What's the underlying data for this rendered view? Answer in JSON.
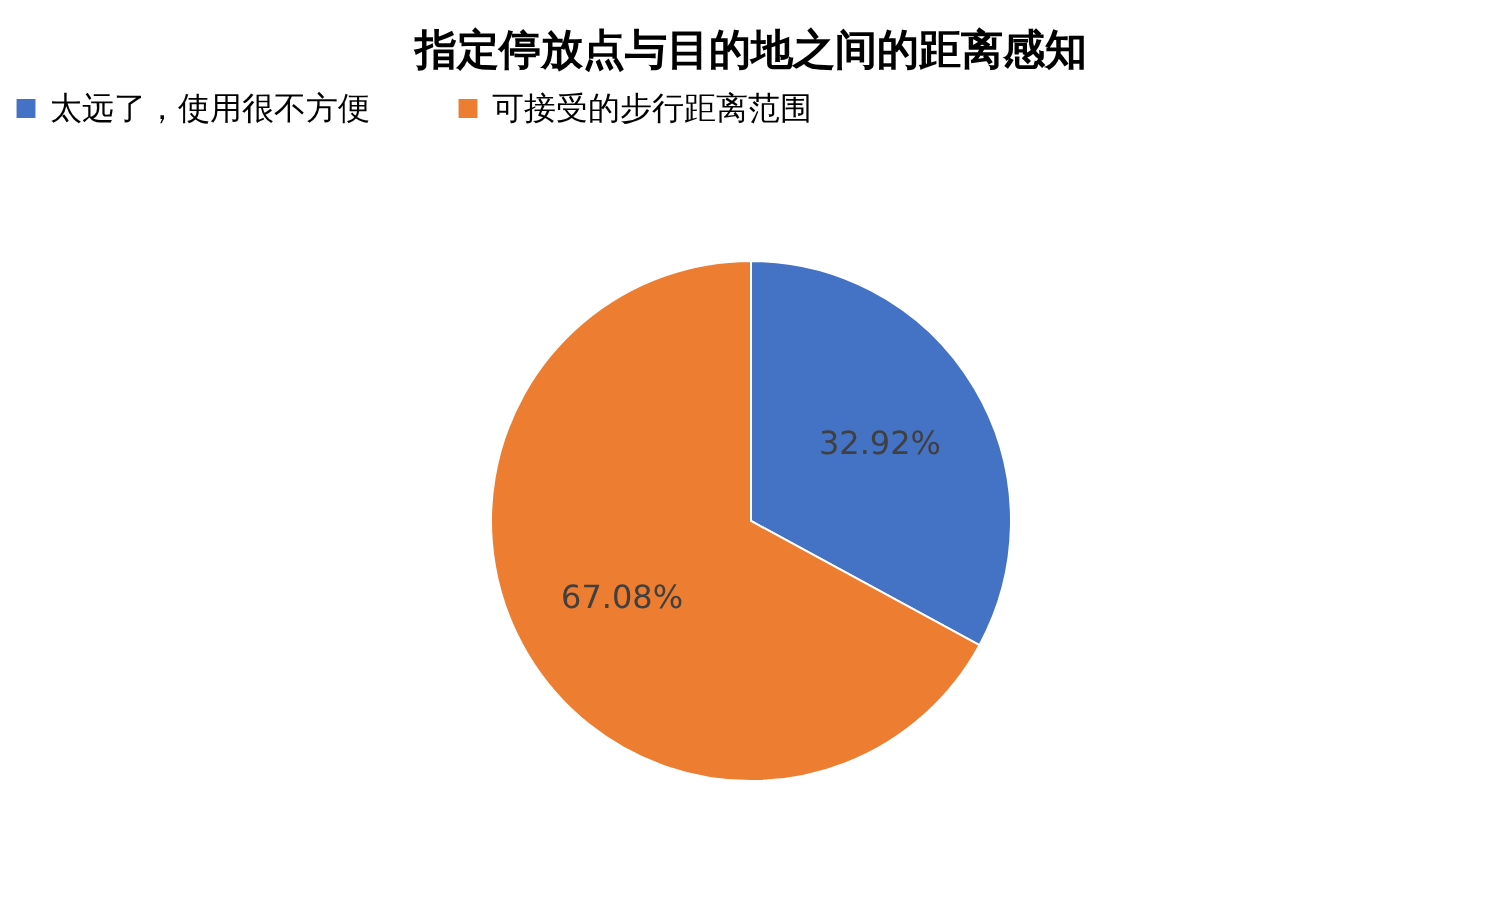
{
  "chart_data": {
    "type": "pie",
    "title": "指定停放点与目的地之间的距离感知",
    "categories": [
      "太远了，使用很不方便",
      "可接受的步行距离范围"
    ],
    "values": [
      32.92,
      67.08
    ],
    "colors": [
      "#4472c4",
      "#ed7d31"
    ],
    "value_labels": [
      "32.92%",
      "67.08%"
    ],
    "legend": "top"
  }
}
